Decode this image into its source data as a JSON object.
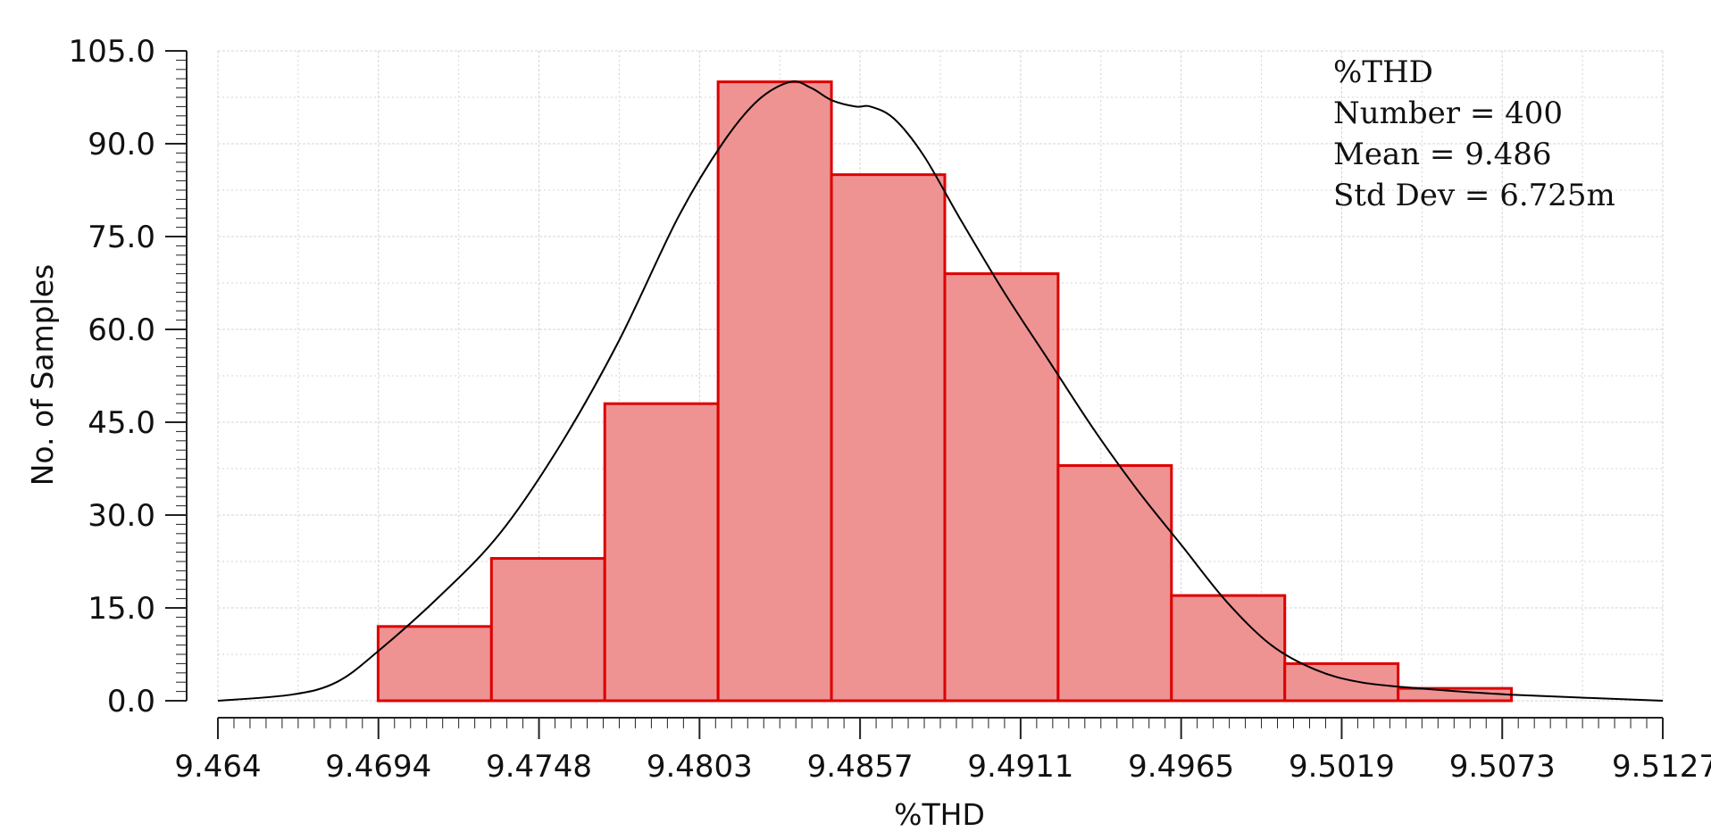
{
  "chart_data": {
    "type": "bar",
    "xlabel": "%THD",
    "ylabel": "No. of Samples",
    "xlim": [
      9.464,
      9.5127
    ],
    "ylim": [
      0,
      105
    ],
    "x_tick_labels": [
      "9.464",
      "9.4694",
      "9.4748",
      "9.4803",
      "9.4857",
      "9.4911",
      "9.4965",
      "9.5019",
      "9.5073",
      "9.5127"
    ],
    "y_tick_labels": [
      "0.0",
      "15.0",
      "30.0",
      "45.0",
      "60.0",
      "75.0",
      "90.0",
      "105.0"
    ],
    "bin_edges": [
      9.4694,
      9.47322,
      9.47704,
      9.48086,
      9.48468,
      9.4885,
      9.49232,
      9.49614,
      9.49996,
      9.50378,
      9.5076
    ],
    "values": [
      12,
      23,
      48,
      100,
      85,
      69,
      38,
      17,
      6,
      2
    ],
    "curve": {
      "x": [
        9.464,
        9.4665,
        9.468,
        9.4694,
        9.4715,
        9.4735,
        9.4755,
        9.4775,
        9.4795,
        9.481,
        9.4822,
        9.4833,
        9.484,
        9.4847,
        9.4855,
        9.486,
        9.4868,
        9.4878,
        9.489,
        9.4905,
        9.492,
        9.4935,
        9.495,
        9.4965,
        9.498,
        9.4995,
        9.501,
        9.5025,
        9.5045,
        9.5075,
        9.5127
      ],
      "y": [
        0,
        1,
        3,
        8,
        17,
        27,
        41,
        58,
        78,
        90,
        97,
        100,
        99,
        97,
        96,
        96,
        94,
        88,
        78,
        66,
        55,
        44,
        34,
        25,
        16,
        9,
        5,
        3,
        2,
        1,
        0
      ]
    },
    "stats": [
      "%THD",
      "Number = 400",
      "Mean = 9.486",
      "Std Dev = 6.725m"
    ],
    "grid": true,
    "colors": {
      "bar_fill": "#ef9292",
      "bar_edge": "#dd0000",
      "curve": "#000000",
      "grid": "#d4d4d4"
    }
  }
}
